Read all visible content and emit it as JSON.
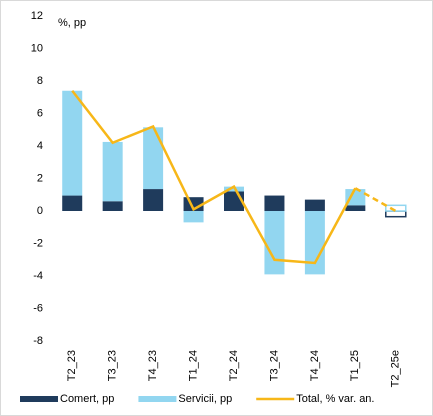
{
  "chart_data": {
    "type": "bar_line",
    "annotation": "%, pp",
    "categories": [
      "T2_23",
      "T3_23",
      "T4_23",
      "T1_24",
      "T2_24",
      "T3_24",
      "T4_24",
      "T1_25",
      "T2_25e"
    ],
    "series": [
      {
        "name": "Comert, pp",
        "color": "#1f3b5c",
        "kind": "bar",
        "values": [
          0.95,
          0.6,
          1.35,
          0.85,
          1.2,
          0.95,
          0.7,
          0.35,
          -0.35
        ]
      },
      {
        "name": "Servicii, pp",
        "color": "#92d6f0",
        "kind": "bar",
        "values": [
          6.45,
          3.65,
          3.8,
          -0.7,
          0.3,
          -3.9,
          -3.9,
          1.0,
          0.35
        ]
      },
      {
        "name": "Total, % var. an.",
        "color": "#f7b718",
        "kind": "line",
        "values": [
          7.4,
          4.2,
          5.2,
          0.1,
          1.5,
          -3.0,
          -3.2,
          1.4,
          0.0
        ]
      }
    ],
    "ylim": [
      -8,
      12
    ],
    "yticks": [
      -8,
      -6,
      -4,
      -2,
      0,
      2,
      4,
      6,
      8,
      10,
      12
    ],
    "legend": "bottom"
  }
}
